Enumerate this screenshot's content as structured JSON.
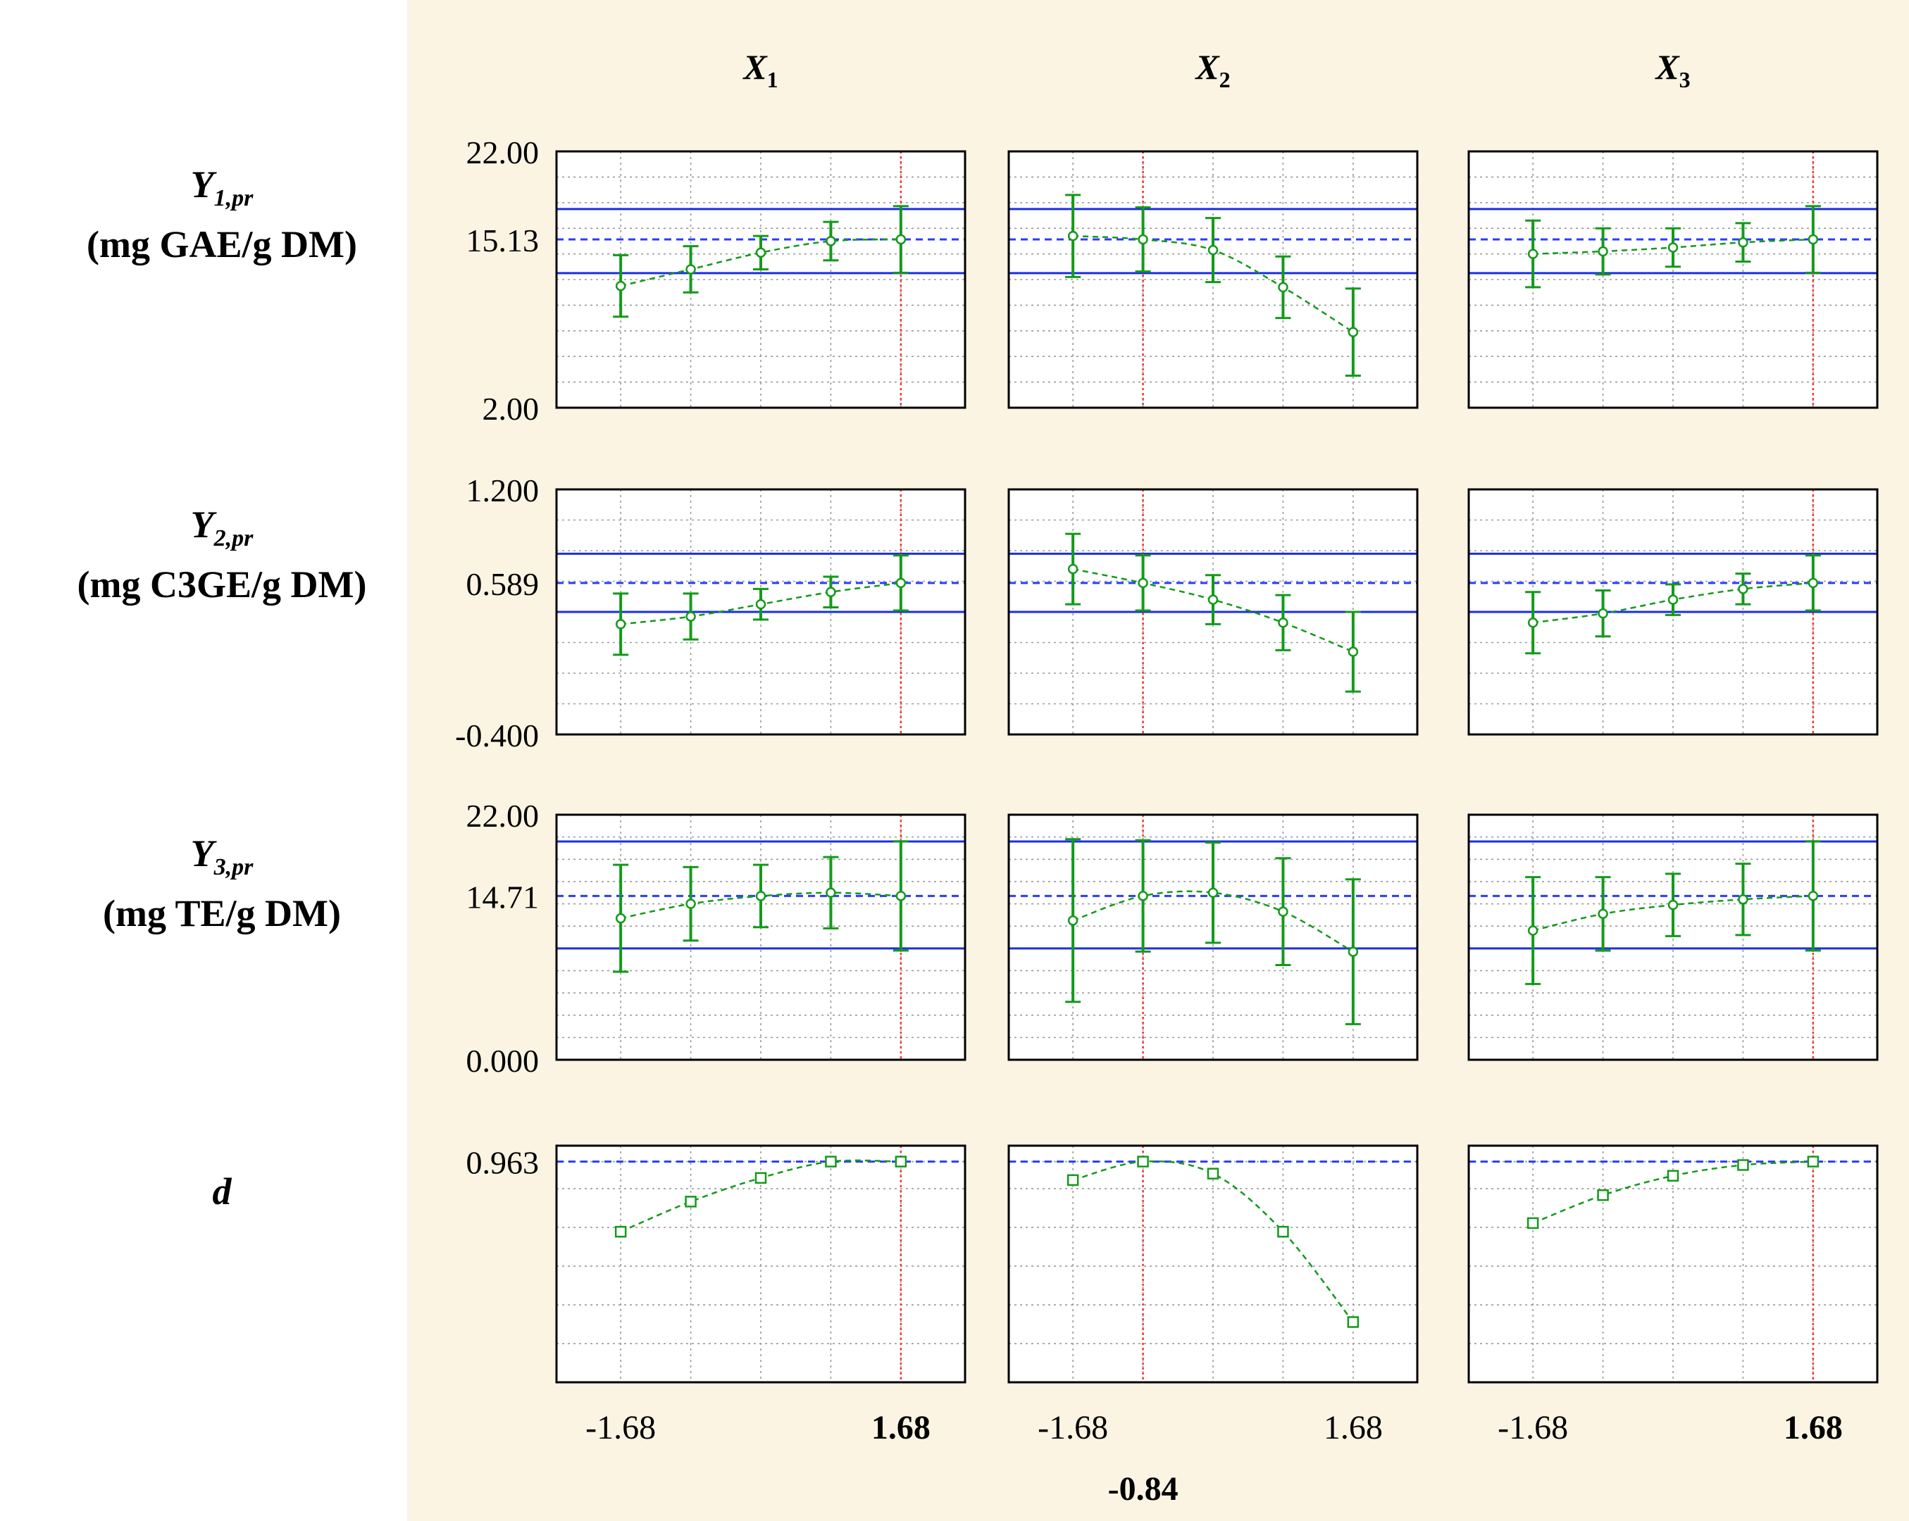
{
  "figure": {
    "columns": [
      {
        "var": "X",
        "sub": "1"
      },
      {
        "var": "X",
        "sub": "2"
      },
      {
        "var": "X",
        "sub": "3"
      }
    ],
    "rows": [
      {
        "var": "Y",
        "sub": "1,pr",
        "unit": "(mg GAE/g DM)"
      },
      {
        "var": "Y",
        "sub": "2,pr",
        "unit": "(mg C3GE/g DM)"
      },
      {
        "var": "Y",
        "sub": "3,pr",
        "unit": "(mg TE/g DM)"
      },
      {
        "var": "d",
        "sub": "",
        "unit": ""
      }
    ],
    "x_tick_labels": [
      [
        "-1.68",
        "1.68"
      ],
      [
        "-1.68",
        "1.68"
      ],
      [
        "-1.68",
        "1.68"
      ]
    ],
    "x_tick_bold": [
      [
        false,
        true
      ],
      [
        false,
        false
      ],
      [
        false,
        true
      ]
    ],
    "x_extra_label": "-0.84",
    "colors": {
      "background": "#fbf4e3",
      "green": "#139a1a",
      "blue": "#1a2ee6",
      "dashed_blue": "#2a3cff",
      "red": "#ff3030",
      "grid": "#9a9a9a",
      "frame": "#000000"
    }
  },
  "chart_data": {
    "type": "line",
    "x": [
      -1.68,
      -0.84,
      0,
      0.84,
      1.68
    ],
    "xlim": [
      -2.45,
      2.45
    ],
    "optimum_x": [
      1.68,
      -0.84,
      1.68
    ],
    "panels": [
      {
        "row": 0,
        "ylim": [
          2.0,
          22.0
        ],
        "ytick_labels": [
          "22.00",
          "15.13",
          "2.00"
        ],
        "yticks": [
          2,
          4,
          6,
          8,
          10,
          12,
          14,
          16,
          18,
          20,
          22
        ],
        "ref_band": [
          12.5,
          17.5
        ],
        "ref_value": 15.13,
        "series": [
          {
            "col": 0,
            "y": [
              11.5,
              12.8,
              14.1,
              15.0,
              15.13
            ],
            "err": [
              2.4,
              1.8,
              1.3,
              1.5,
              2.6
            ]
          },
          {
            "col": 1,
            "y": [
              15.4,
              15.13,
              14.3,
              11.4,
              7.9
            ],
            "err": [
              3.2,
              2.5,
              2.5,
              2.4,
              3.4
            ]
          },
          {
            "col": 2,
            "y": [
              14.0,
              14.2,
              14.5,
              14.9,
              15.13
            ],
            "err": [
              2.6,
              1.8,
              1.5,
              1.5,
              2.6
            ]
          }
        ]
      },
      {
        "row": 1,
        "ylim": [
          -0.4,
          1.2
        ],
        "ytick_labels": [
          "1.200",
          "0.589",
          "-0.400"
        ],
        "yticks": [
          -0.4,
          -0.2,
          0.0,
          0.2,
          0.4,
          0.6,
          0.8,
          1.0,
          1.2
        ],
        "ref_band": [
          0.4,
          0.78
        ],
        "ref_value": 0.589,
        "series": [
          {
            "col": 0,
            "y": [
              0.32,
              0.37,
              0.45,
              0.53,
              0.589
            ],
            "err": [
              0.2,
              0.15,
              0.1,
              0.1,
              0.18
            ]
          },
          {
            "col": 1,
            "y": [
              0.68,
              0.589,
              0.48,
              0.33,
              0.14
            ],
            "err": [
              0.23,
              0.18,
              0.16,
              0.18,
              0.26
            ]
          },
          {
            "col": 2,
            "y": [
              0.33,
              0.39,
              0.48,
              0.55,
              0.589
            ],
            "err": [
              0.2,
              0.15,
              0.1,
              0.1,
              0.18
            ]
          }
        ]
      },
      {
        "row": 2,
        "ylim": [
          0.0,
          22.0
        ],
        "ytick_labels": [
          "22.00",
          "14.71",
          "0.000"
        ],
        "yticks": [
          0,
          2,
          4,
          6,
          8,
          10,
          12,
          14,
          16,
          18,
          20,
          22
        ],
        "ref_band": [
          10.0,
          19.6
        ],
        "ref_value": 14.71,
        "series": [
          {
            "col": 0,
            "y": [
              12.7,
              14.0,
              14.7,
              15.0,
              14.71
            ],
            "err": [
              4.8,
              3.3,
              2.8,
              3.2,
              4.9
            ]
          },
          {
            "col": 1,
            "y": [
              12.5,
              14.71,
              15.0,
              13.3,
              9.7
            ],
            "err": [
              7.3,
              5.0,
              4.5,
              4.8,
              6.5
            ]
          },
          {
            "col": 2,
            "y": [
              11.6,
              13.1,
              13.9,
              14.4,
              14.71
            ],
            "err": [
              4.8,
              3.3,
              2.8,
              3.2,
              4.9
            ]
          }
        ]
      },
      {
        "row": 3,
        "ylim": [
          0.45,
          1.0
        ],
        "ytick_labels": [
          "0.963"
        ],
        "yticks": [
          0.45,
          0.54,
          0.63,
          0.72,
          0.81,
          0.9,
          0.963
        ],
        "ref_band": null,
        "ref_value": 0.963,
        "series": [
          {
            "col": 0,
            "y": [
              0.8,
              0.87,
              0.925,
              0.963,
              0.963
            ]
          },
          {
            "col": 1,
            "y": [
              0.92,
              0.963,
              0.935,
              0.8,
              0.59
            ]
          },
          {
            "col": 2,
            "y": [
              0.82,
              0.885,
              0.93,
              0.955,
              0.963
            ]
          }
        ]
      }
    ]
  }
}
